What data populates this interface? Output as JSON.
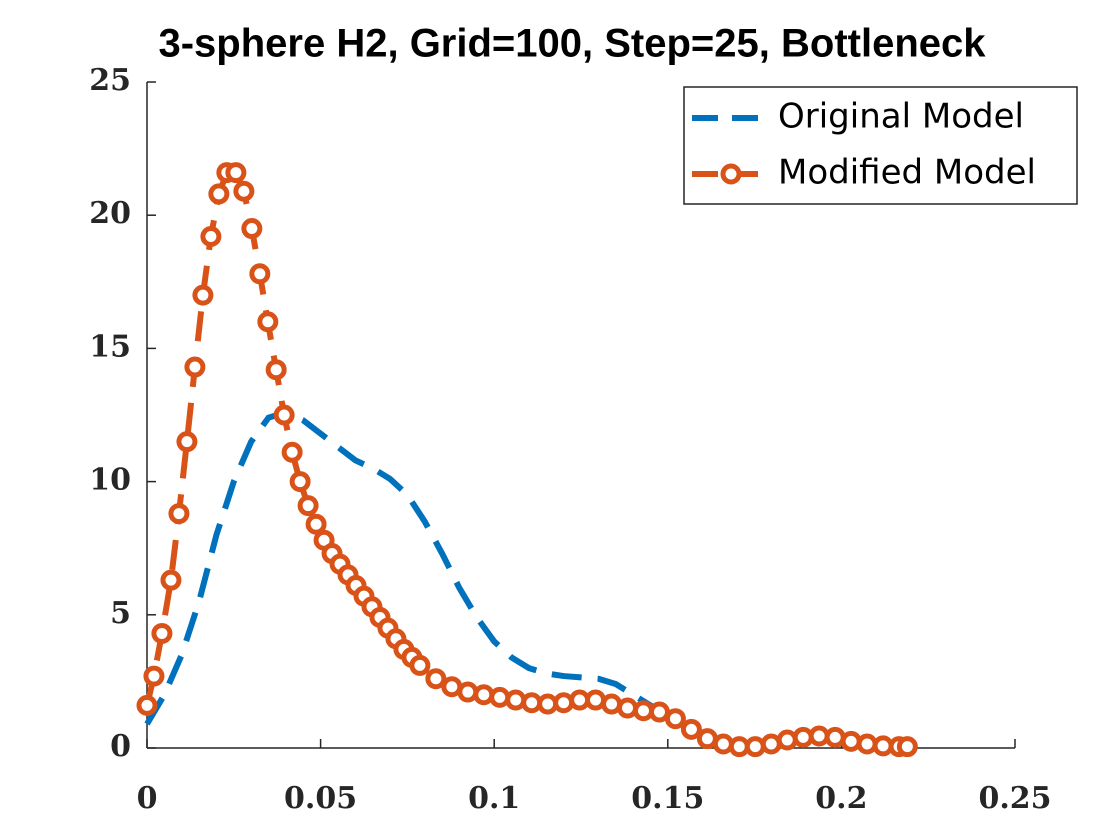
{
  "chart_data": {
    "type": "line",
    "title": "3-sphere H2, Grid=100, Step=25, Bottleneck",
    "xlim": [
      0,
      0.25
    ],
    "xticks": [
      0,
      0.05,
      0.1,
      0.15,
      0.2,
      0.25
    ],
    "ylim": [
      0,
      25
    ],
    "yticks": [
      0,
      5,
      10,
      15,
      20,
      25
    ],
    "legend": "top-right",
    "series": [
      {
        "name": "Original Model",
        "color": "#0072bd",
        "dash": true,
        "marker": false,
        "x": [
          0,
          0.005,
          0.01,
          0.015,
          0.02,
          0.025,
          0.03,
          0.035,
          0.04,
          0.045,
          0.05,
          0.055,
          0.06,
          0.065,
          0.07,
          0.075,
          0.08,
          0.085,
          0.09,
          0.095,
          0.1,
          0.105,
          0.11,
          0.115,
          0.12,
          0.125,
          0.13,
          0.135,
          0.14,
          0.145,
          0.15,
          0.155,
          0.16,
          0.165,
          0.17,
          0.175,
          0.18,
          0.185,
          0.19,
          0.195,
          0.2,
          0.205,
          0.21,
          0.215,
          0.219
        ],
        "values": [
          0.9,
          2,
          3.5,
          5.5,
          8,
          10,
          11.5,
          12.4,
          12.6,
          12.3,
          11.8,
          11.3,
          10.8,
          10.5,
          10.1,
          9.5,
          8.5,
          7.3,
          6,
          4.9,
          4,
          3.4,
          3,
          2.8,
          2.7,
          2.65,
          2.6,
          2.4,
          2,
          1.6,
          1.2,
          0.8,
          0.5,
          0.3,
          0.2,
          0.15,
          0.2,
          0.3,
          0.4,
          0.45,
          0.4,
          0.3,
          0.2,
          0.15,
          0.1
        ]
      },
      {
        "name": "Modified Model",
        "color": "#d95319",
        "dash": true,
        "marker": true,
        "x": [
          0,
          0.002,
          0.0043,
          0.0069,
          0.0092,
          0.0115,
          0.0138,
          0.0161,
          0.0184,
          0.0207,
          0.023,
          0.0256,
          0.0279,
          0.0302,
          0.0325,
          0.0348,
          0.0372,
          0.0395,
          0.0418,
          0.0441,
          0.0464,
          0.0487,
          0.051,
          0.0533,
          0.0556,
          0.0579,
          0.0602,
          0.0625,
          0.0648,
          0.0671,
          0.0694,
          0.0717,
          0.074,
          0.0763,
          0.0786,
          0.0832,
          0.0878,
          0.0924,
          0.097,
          0.1016,
          0.1062,
          0.1108,
          0.1154,
          0.12,
          0.1246,
          0.1292,
          0.1338,
          0.1384,
          0.143,
          0.1476,
          0.1522,
          0.1568,
          0.1614,
          0.166,
          0.1706,
          0.1752,
          0.1798,
          0.1844,
          0.189,
          0.1936,
          0.1982,
          0.2028,
          0.2074,
          0.212,
          0.2166,
          0.219
        ],
        "values": [
          1.6,
          2.7,
          4.3,
          6.3,
          8.8,
          11.5,
          14.3,
          17,
          19.2,
          20.8,
          21.6,
          21.6,
          20.9,
          19.5,
          17.8,
          16,
          14.2,
          12.5,
          11.1,
          10,
          9.1,
          8.4,
          7.8,
          7.3,
          6.9,
          6.5,
          6.1,
          5.7,
          5.3,
          4.9,
          4.5,
          4.1,
          3.7,
          3.4,
          3.1,
          2.6,
          2.3,
          2.1,
          2,
          1.9,
          1.8,
          1.7,
          1.65,
          1.7,
          1.8,
          1.8,
          1.65,
          1.5,
          1.4,
          1.35,
          1.1,
          0.7,
          0.35,
          0.15,
          0.05,
          0.05,
          0.15,
          0.3,
          0.4,
          0.45,
          0.4,
          0.25,
          0.15,
          0.08,
          0.05,
          0.05
        ]
      }
    ]
  }
}
